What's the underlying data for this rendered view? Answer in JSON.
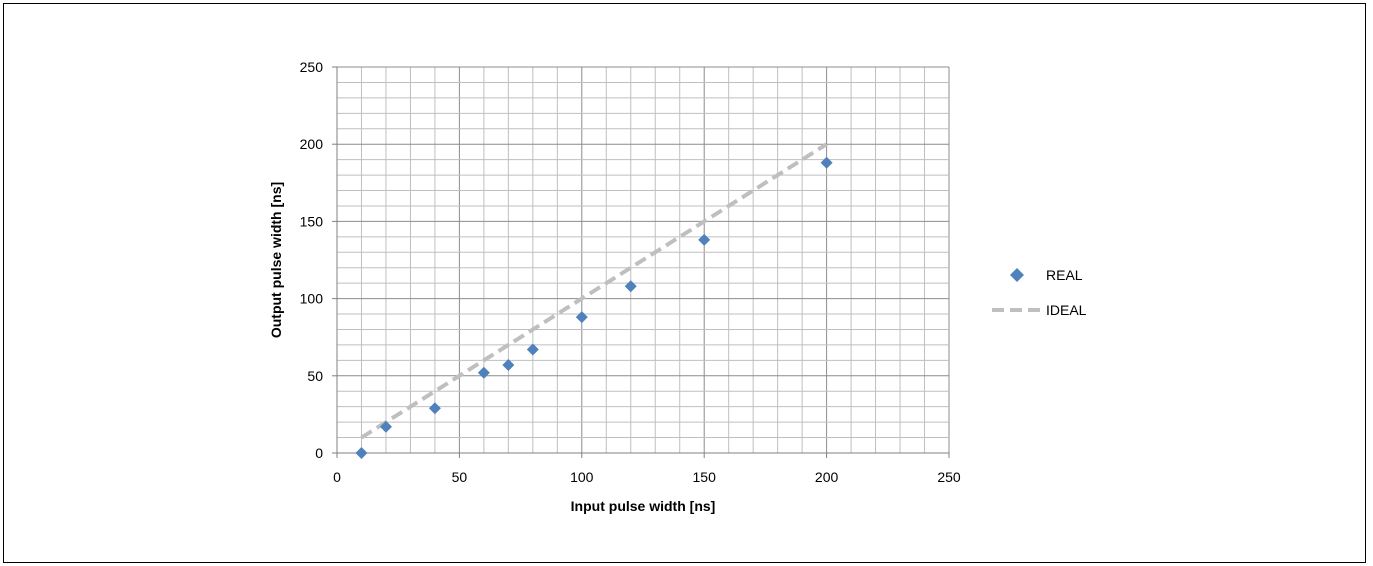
{
  "chart_data": {
    "type": "scatter",
    "title": "",
    "xlabel": "Input pulse width [ns]",
    "ylabel": "Output pulse width [ns]",
    "xlim": [
      0,
      250
    ],
    "ylim": [
      0,
      250
    ],
    "x_ticks": [
      0,
      50,
      100,
      150,
      200,
      250
    ],
    "y_ticks": [
      0,
      50,
      100,
      150,
      200,
      250
    ],
    "major_step": 50,
    "minor_step": 10,
    "grid": true,
    "legend_position": "right",
    "series": [
      {
        "name": "REAL",
        "kind": "scatter",
        "marker": "diamond",
        "color": "#4F81BD",
        "points": [
          {
            "x": 10,
            "y": 0
          },
          {
            "x": 20,
            "y": 17
          },
          {
            "x": 40,
            "y": 29
          },
          {
            "x": 60,
            "y": 52
          },
          {
            "x": 70,
            "y": 57
          },
          {
            "x": 80,
            "y": 67
          },
          {
            "x": 100,
            "y": 88
          },
          {
            "x": 120,
            "y": 108
          },
          {
            "x": 150,
            "y": 138
          },
          {
            "x": 200,
            "y": 188
          }
        ]
      },
      {
        "name": "IDEAL",
        "kind": "dashed-line",
        "color": "#BFBFBF",
        "points": [
          {
            "x": 10,
            "y": 10
          },
          {
            "x": 200,
            "y": 200
          }
        ]
      }
    ]
  }
}
